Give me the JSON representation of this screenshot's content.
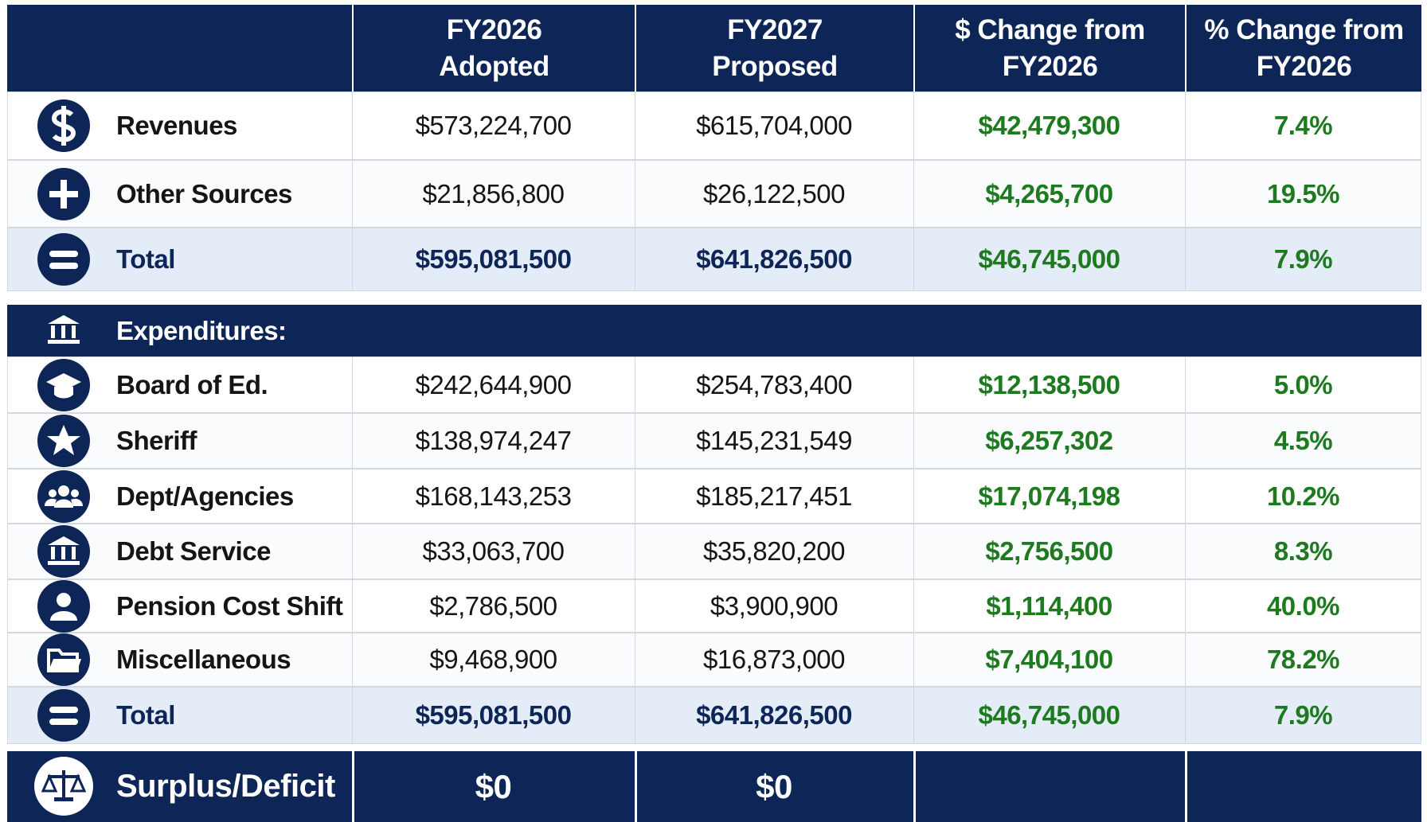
{
  "header": {
    "columns": [
      [
        "FY2026",
        "Adopted"
      ],
      [
        "FY2027",
        "Proposed"
      ],
      [
        "$ Change from",
        "FY2026"
      ],
      [
        "% Change from",
        "FY2026"
      ]
    ]
  },
  "sources": {
    "rows": [
      {
        "label": "Revenues",
        "values": [
          "$573,224,700",
          "$615,704,000",
          "$42,479,300",
          "7.4%"
        ]
      },
      {
        "label": "Other Sources",
        "values": [
          "$21,856,800",
          "$26,122,500",
          "$4,265,700",
          "19.5%"
        ]
      }
    ],
    "total": {
      "label": "Total",
      "values": [
        "$595,081,500",
        "$641,826,500",
        "$46,745,000",
        "7.9%"
      ]
    }
  },
  "expenditures": {
    "title": "Expenditures:",
    "rows": [
      {
        "label": "Board of Ed.",
        "values": [
          "$242,644,900",
          "$254,783,400",
          "$12,138,500",
          "5.0%"
        ]
      },
      {
        "label": "Sheriff",
        "values": [
          "$138,974,247",
          "$145,231,549",
          "$6,257,302",
          "4.5%"
        ]
      },
      {
        "label": "Dept/Agencies",
        "values": [
          "$168,143,253",
          "$185,217,451",
          "$17,074,198",
          "10.2%"
        ]
      },
      {
        "label": "Debt Service",
        "values": [
          "$33,063,700",
          "$35,820,200",
          "$2,756,500",
          "8.3%"
        ]
      },
      {
        "label": "Pension Cost Shift",
        "values": [
          "$2,786,500",
          "$3,900,900",
          "$1,114,400",
          "40.0%"
        ]
      },
      {
        "label": "Miscellaneous",
        "values": [
          "$9,468,900",
          "$16,873,000",
          "$7,404,100",
          "78.2%"
        ]
      }
    ],
    "total": {
      "label": "Total",
      "values": [
        "$595,081,500",
        "$641,826,500",
        "$46,745,000",
        "7.9%"
      ]
    }
  },
  "surplus": {
    "label": "Surplus/Deficit",
    "values": [
      "$0",
      "$0"
    ]
  }
}
